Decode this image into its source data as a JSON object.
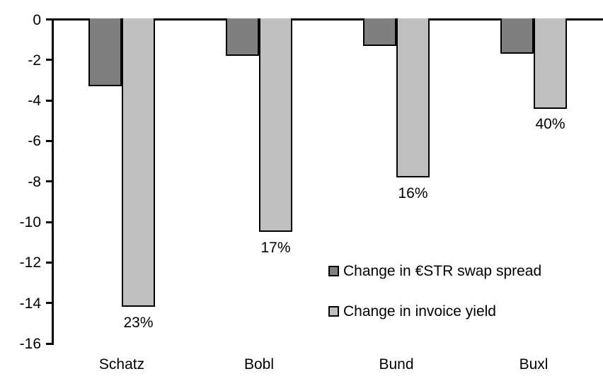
{
  "chart_data": {
    "type": "bar",
    "title": "",
    "xlabel": "",
    "ylabel": "",
    "categories": [
      "Schatz",
      "Bobl",
      "Bund",
      "Buxl"
    ],
    "series": [
      {
        "name": "Change in €STR swap spread",
        "color": "#7f7f7f",
        "values": [
          -3.3,
          -1.8,
          -1.3,
          -1.7
        ]
      },
      {
        "name": "Change in invoice yield",
        "color": "#bfbfbf",
        "values": [
          -14.2,
          -10.5,
          -7.8,
          -4.4
        ]
      }
    ],
    "bar_labels": {
      "attached_to_series": "Change in invoice yield",
      "values": [
        "23%",
        "17%",
        "16%",
        "40%"
      ]
    },
    "ylim": [
      -16,
      0
    ],
    "yticks": [
      "0",
      "-2",
      "-4",
      "-6",
      "-8",
      "-10",
      "-12",
      "-14",
      "-16"
    ],
    "ytick_values": [
      0,
      -2,
      -4,
      -6,
      -8,
      -10,
      -12,
      -14,
      -16
    ],
    "grid": false,
    "legend_position": "inside-center-right",
    "axis_color": "#000000",
    "bar_border_color": "#000000",
    "background_color": "#ffffff",
    "text_color": "#000000"
  }
}
